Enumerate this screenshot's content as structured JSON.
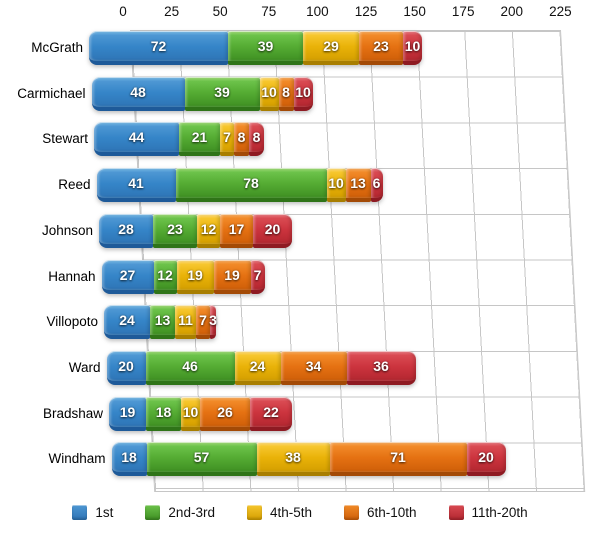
{
  "chart_data": {
    "type": "bar",
    "orientation": "horizontal",
    "stacked": true,
    "title": "",
    "categories": [
      "McGrath",
      "Carmichael",
      "Stewart",
      "Reed",
      "Johnson",
      "Hannah",
      "Villopoto",
      "Ward",
      "Bradshaw",
      "Windham"
    ],
    "series": [
      {
        "name": "1st",
        "color": "#3383C8",
        "gradient": [
          "#7FC0EA",
          "#4E97D3",
          "#3585C8",
          "#2E74B5",
          "#1E5A99"
        ],
        "values": [
          72,
          48,
          44,
          41,
          28,
          27,
          24,
          20,
          19,
          18
        ]
      },
      {
        "name": "2nd-3rd",
        "color": "#55AC33",
        "gradient": [
          "#A8DF7E",
          "#6CC24A",
          "#55AC33",
          "#3E8F22",
          "#2F7418"
        ],
        "values": [
          39,
          39,
          21,
          78,
          23,
          12,
          13,
          46,
          18,
          57
        ]
      },
      {
        "name": "4th-5th",
        "color": "#E9B208",
        "gradient": [
          "#FFE08A",
          "#F6C62E",
          "#E9B208",
          "#D39E00",
          "#A87E00"
        ],
        "values": [
          29,
          10,
          7,
          10,
          12,
          19,
          11,
          24,
          10,
          38
        ]
      },
      {
        "name": "6th-10th",
        "color": "#E57112",
        "gradient": [
          "#FAB066",
          "#F18A28",
          "#E57112",
          "#CE5E08",
          "#A34A06"
        ],
        "values": [
          23,
          8,
          8,
          13,
          17,
          19,
          7,
          34,
          26,
          71
        ]
      },
      {
        "name": "11th-20th",
        "color": "#CC343E",
        "gradient": [
          "#EC8289",
          "#D94A52",
          "#CC343E",
          "#B2262F",
          "#8E1A22"
        ],
        "values": [
          10,
          10,
          8,
          6,
          20,
          7,
          3,
          36,
          22,
          20
        ]
      }
    ],
    "x_ticks": [
      "0",
      "25",
      "50",
      "75",
      "100",
      "125",
      "150",
      "175",
      "200",
      "225"
    ],
    "xlim": [
      0,
      225
    ],
    "grid": true,
    "grid_color": "#c6c6c6",
    "legend_position": "bottom"
  }
}
